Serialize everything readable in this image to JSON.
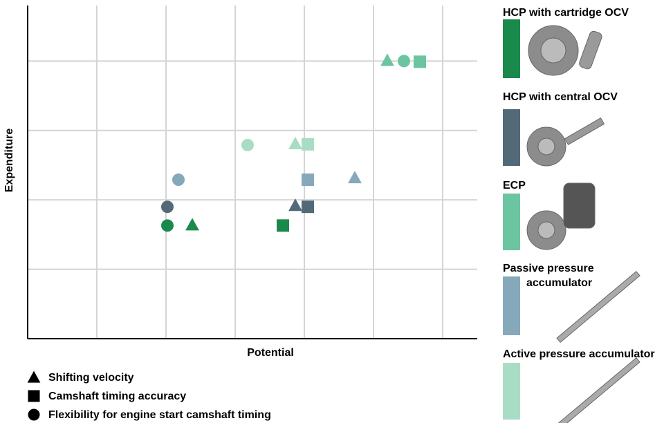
{
  "chart_data": {
    "type": "scatter",
    "x_label": "Potential",
    "y_label": "Expenditure",
    "xlim": [
      0,
      6.5
    ],
    "ylim": [
      0,
      4.8
    ],
    "xticks": [
      1,
      2,
      3,
      4,
      5,
      6
    ],
    "yticks": [
      1,
      2,
      3,
      4
    ],
    "tick_labels": false,
    "grid": true,
    "criteria": [
      {
        "name": "Shifting velocity",
        "marker": "triangle"
      },
      {
        "name": "Camshaft timing accuracy",
        "marker": "square"
      },
      {
        "name": "Flexibility for engine start camshaft timing",
        "marker": "circle"
      }
    ],
    "series": [
      {
        "name": "HCP with cartridge OCV",
        "color": "#1a8a4c",
        "x": [
          2.38,
          3.69,
          2.02
        ],
        "values": [
          1.64,
          1.63,
          1.63
        ]
      },
      {
        "name": "HCP with central OCV",
        "color": "#536978",
        "x": [
          3.87,
          4.05,
          2.02
        ],
        "values": [
          1.92,
          1.9,
          1.9
        ]
      },
      {
        "name": "ECP",
        "color": "#6cc5a1",
        "x": [
          5.2,
          5.67,
          5.44
        ],
        "values": [
          4.01,
          3.99,
          4.0
        ]
      },
      {
        "name": "Passive pressure accumulator",
        "color": "#86a8bb",
        "x": [
          4.73,
          4.05,
          2.18
        ],
        "values": [
          2.32,
          2.29,
          2.29
        ]
      },
      {
        "name": "Active pressure accumulator",
        "color": "#a9dcc4",
        "x": [
          3.87,
          4.05,
          3.18
        ],
        "values": [
          2.81,
          2.8,
          2.79
        ]
      }
    ]
  }
}
